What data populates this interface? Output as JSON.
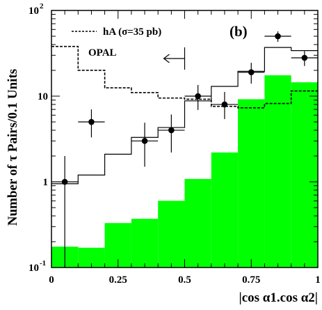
{
  "chart_data": {
    "type": "histogram",
    "panel_label": "(b)",
    "xlabel": "|cos α1.cos α2|",
    "ylabel": "Number of τ Pairs/0.1 Units",
    "xlim": [
      0,
      1
    ],
    "ylim": [
      0.1,
      100
    ],
    "y_scale": "log",
    "x_ticks": [
      {
        "value": 0,
        "label": "0"
      },
      {
        "value": 0.25,
        "label": "0.25"
      },
      {
        "value": 0.5,
        "label": "0.5"
      },
      {
        "value": 0.75,
        "label": "0.75"
      },
      {
        "value": 1,
        "label": "1"
      }
    ],
    "y_ticks": [
      {
        "value": 0.1,
        "base": "10",
        "exp": "-1"
      },
      {
        "value": 1,
        "base": "1",
        "exp": ""
      },
      {
        "value": 10,
        "base": "10",
        "exp": ""
      },
      {
        "value": 100,
        "base": "10",
        "exp": "2"
      }
    ],
    "bin_edges": [
      0,
      0.1,
      0.2,
      0.3,
      0.4,
      0.5,
      0.6,
      0.7,
      0.8,
      0.9,
      1.0
    ],
    "series": [
      {
        "name": "",
        "kind": "filled_histogram",
        "color": "#00ff00",
        "values": [
          0.175,
          0.17,
          0.33,
          0.37,
          0.6,
          1.08,
          2.2,
          9.2,
          17.5,
          14.5
        ]
      },
      {
        "name": "",
        "kind": "solid_histogram",
        "color": "#000000",
        "values": [
          0.95,
          1.2,
          2.1,
          3.3,
          4.3,
          8.8,
          13.0,
          19.5,
          37.0,
          34.0
        ]
      },
      {
        "name": "hA (σ=35 pb)",
        "kind": "dashed_histogram",
        "color": "#000000",
        "values": [
          38.0,
          20.0,
          12.5,
          11.0,
          9.5,
          9.2,
          7.6,
          7.3,
          8.2,
          11.5
        ]
      },
      {
        "name": "OPAL",
        "kind": "data_points",
        "color": "#000000",
        "points": [
          {
            "x": 0.05,
            "y": 1.0,
            "ylo": 0.1,
            "yhi": 2.0
          },
          {
            "x": 0.15,
            "y": 5.0,
            "ylo": 3.3,
            "yhi": 7.0
          },
          {
            "x": 0.35,
            "y": 3.0,
            "ylo": 1.5,
            "yhi": 4.9
          },
          {
            "x": 0.45,
            "y": 4.0,
            "ylo": 2.2,
            "yhi": 6.1
          },
          {
            "x": 0.55,
            "y": 10.0,
            "ylo": 6.9,
            "yhi": 13.5
          },
          {
            "x": 0.65,
            "y": 8.0,
            "ylo": 5.4,
            "yhi": 11.2
          },
          {
            "x": 0.75,
            "y": 19.0,
            "ylo": 14.0,
            "yhi": 24.5
          },
          {
            "x": 0.85,
            "y": 50.0,
            "ylo": 43.0,
            "yhi": 57.0
          },
          {
            "x": 0.95,
            "y": 28.0,
            "ylo": 22.5,
            "yhi": 33.5
          }
        ]
      }
    ],
    "legend": {
      "position": "top-left",
      "entries": [
        {
          "label": "hA (σ=35 pb)",
          "style": "dashed"
        },
        {
          "label": "OPAL",
          "style": "text"
        }
      ]
    },
    "annotations": [
      {
        "kind": "cut_arrow",
        "x": 0.5,
        "direction": "left"
      }
    ]
  }
}
